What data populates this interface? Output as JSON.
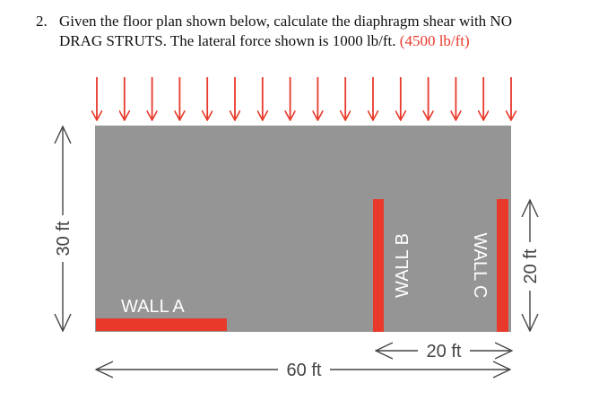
{
  "question": {
    "number": "2.",
    "lines": [
      "Given the floor plan shown below, calculate the diaphragm shear with NO",
      "DRAG STRUTS.  The lateral force shown is 1000 lb/ft."
    ],
    "note": "(4500 lb/ft)"
  },
  "labels": {
    "wall_a": "WALL A",
    "wall_b": "WALL B",
    "wall_c": "WALL C"
  },
  "dimensions": {
    "height_total": "30 ft",
    "width_total": "60 ft",
    "wall_spacing": "20 ft",
    "wall_length": "20 ft"
  }
}
